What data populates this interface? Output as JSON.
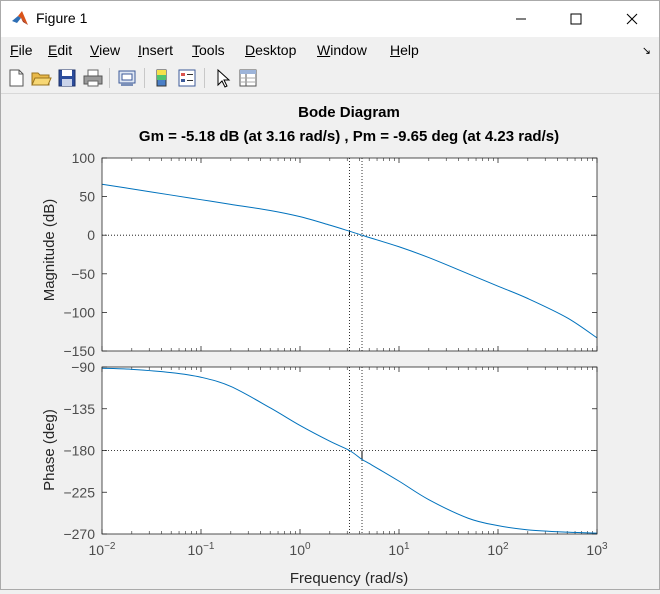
{
  "window": {
    "title": "Figure 1",
    "icon": "matlab-logo-icon"
  },
  "menu": {
    "items": [
      "File",
      "Edit",
      "View",
      "Insert",
      "Tools",
      "Desktop",
      "Window",
      "Help"
    ],
    "underlined": [
      "F",
      "E",
      "V",
      "I",
      "T",
      "D",
      "W",
      "H"
    ]
  },
  "toolbar": {
    "buttons": [
      "new-figure-icon",
      "open-file-icon",
      "save-icon",
      "print-icon",
      "link-plot-icon",
      "colorbar-icon",
      "legend-icon",
      "edit-plot-arrow-icon",
      "property-inspector-icon"
    ]
  },
  "chart_data": {
    "type": "line",
    "title": "Bode Diagram",
    "subtitle": "Gm = -5.18 dB (at 3.16 rad/s) ,  Pm = -9.65 deg (at 4.23 rad/s)",
    "xlabel": "Frequency  (rad/s)",
    "xscale": "log",
    "xlim": [
      0.01,
      1000
    ],
    "x_tick_labels": [
      {
        "base": "10",
        "exp": "-2"
      },
      {
        "base": "10",
        "exp": "-1"
      },
      {
        "base": "10",
        "exp": "0"
      },
      {
        "base": "10",
        "exp": "1"
      },
      {
        "base": "10",
        "exp": "2"
      },
      {
        "base": "10",
        "exp": "3"
      }
    ],
    "line_color": "#0072bd",
    "grid": false,
    "magnitude": {
      "ylabel": "Magnitude (dB)",
      "ylim": [
        -150,
        100
      ],
      "yticks": [
        "100",
        "50",
        "0",
        "-50",
        "-100",
        "-150"
      ],
      "points": [
        [
          0.01,
          66
        ],
        [
          0.02,
          60
        ],
        [
          0.05,
          52
        ],
        [
          0.1,
          46
        ],
        [
          0.2,
          40
        ],
        [
          0.5,
          32
        ],
        [
          1,
          24
        ],
        [
          2,
          13
        ],
        [
          3.16,
          5.18
        ],
        [
          4.23,
          0
        ],
        [
          5,
          -3
        ],
        [
          10,
          -15
        ],
        [
          20,
          -29
        ],
        [
          50,
          -50
        ],
        [
          100,
          -66
        ],
        [
          200,
          -82
        ],
        [
          500,
          -107
        ],
        [
          1000,
          -133
        ]
      ]
    },
    "phase": {
      "ylabel": "Phase (deg)",
      "ylim": [
        -270,
        -90
      ],
      "yticks": [
        "-90",
        "-135",
        "-180",
        "-225",
        "-270"
      ],
      "points": [
        [
          0.01,
          -91.3
        ],
        [
          0.02,
          -92.5
        ],
        [
          0.05,
          -96
        ],
        [
          0.1,
          -101
        ],
        [
          0.2,
          -111
        ],
        [
          0.5,
          -134
        ],
        [
          1,
          -153
        ],
        [
          2,
          -170
        ],
        [
          3.16,
          -180
        ],
        [
          4.23,
          -189.65
        ],
        [
          5,
          -194
        ],
        [
          10,
          -213
        ],
        [
          20,
          -233
        ],
        [
          50,
          -253
        ],
        [
          100,
          -261
        ],
        [
          200,
          -265.5
        ],
        [
          500,
          -268
        ],
        [
          1000,
          -269
        ]
      ]
    },
    "gain_margin": {
      "value_db": -5.18,
      "frequency": 3.16
    },
    "phase_margin": {
      "value_deg": -9.65,
      "frequency": 4.23
    }
  }
}
